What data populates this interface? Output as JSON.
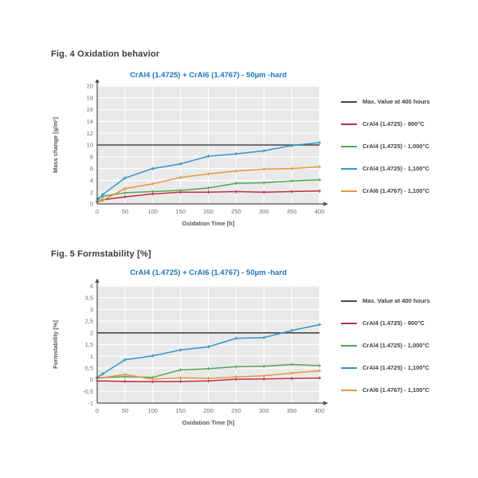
{
  "chart_data": [
    {
      "figure_heading": "Fig. 4 Oxidation behavior",
      "type": "line",
      "title": "CrAl4 (1.4725) + CrAl6 (1.4767) - 50µm -hard",
      "title_color": "#1878ba",
      "xlabel": "Oxidation Time [h]",
      "ylabel": "Mass change [g/m²]",
      "xlim": [
        0,
        400
      ],
      "ylim": [
        0,
        20
      ],
      "grid": true,
      "legend_position": "right",
      "x_ticks": [
        0,
        50,
        100,
        150,
        200,
        250,
        300,
        350,
        400
      ],
      "x_tick_labels": [
        "0",
        "50",
        "100",
        "150",
        "200",
        "250",
        "300",
        "350",
        "400"
      ],
      "y_ticks": [
        0,
        2,
        4,
        6,
        8,
        10,
        12,
        14,
        16,
        18,
        20
      ],
      "y_tick_labels": [
        "0",
        "2",
        "4",
        "6",
        "8",
        "10",
        "12",
        "14",
        "16",
        "18",
        "20"
      ],
      "max_line": {
        "label": "Max. Value at 400 hours",
        "value": 10,
        "color": "#474747"
      },
      "series": [
        {
          "name": "CrAl4 (1.4725) - 900°C",
          "color": "#c22b45",
          "x": [
            0,
            10,
            50,
            100,
            150,
            200,
            250,
            300,
            350,
            400
          ],
          "y": [
            0.3,
            0.7,
            1.2,
            1.7,
            2.0,
            2.0,
            2.1,
            2.0,
            2.1,
            2.2
          ]
        },
        {
          "name": "CrAl4 (1.4725) - 1,000°C",
          "color": "#54a552",
          "x": [
            0,
            10,
            50,
            100,
            150,
            200,
            250,
            300,
            350,
            400
          ],
          "y": [
            0.9,
            1.3,
            1.9,
            2.1,
            2.3,
            2.7,
            3.5,
            3.6,
            3.9,
            4.1
          ]
        },
        {
          "name": "CrAl4 (1.4725) - 1,100°C",
          "color": "#2e96ca",
          "x": [
            0,
            10,
            50,
            100,
            150,
            200,
            250,
            300,
            350,
            400
          ],
          "y": [
            0.5,
            1.6,
            4.4,
            6.0,
            6.8,
            8.1,
            8.5,
            9.0,
            9.9,
            10.4
          ]
        },
        {
          "name": "CrAl6 (1.4767) - 1,100°C",
          "color": "#e5973b",
          "x": [
            0,
            10,
            50,
            100,
            150,
            200,
            250,
            300,
            350,
            400
          ],
          "y": [
            0.3,
            0.6,
            2.6,
            3.4,
            4.5,
            5.1,
            5.6,
            5.9,
            6.0,
            6.3
          ]
        }
      ]
    },
    {
      "figure_heading": "Fig. 5 Formstability [%]",
      "type": "line",
      "title": "CrAl4 (1.4725) + CrAl6 (1.4767) - 50µm -hard",
      "title_color": "#1878ba",
      "xlabel": "Oxidation Time [h]",
      "ylabel": "Formstability [%]",
      "xlim": [
        0,
        400
      ],
      "ylim": [
        -1,
        4
      ],
      "grid": true,
      "legend_position": "right",
      "x_ticks": [
        0,
        50,
        100,
        150,
        200,
        250,
        300,
        350,
        400
      ],
      "x_tick_labels": [
        "0",
        "50",
        "100",
        "150",
        "200",
        "250",
        "300",
        "350",
        "400"
      ],
      "y_ticks": [
        -1,
        -0.5,
        0,
        0.5,
        1,
        1.5,
        2,
        2.5,
        3,
        3.5,
        4
      ],
      "y_tick_labels": [
        "-1",
        "-0,5",
        "0",
        "0,5",
        "1",
        "1,5",
        "2",
        "2,5",
        "3",
        "3,5",
        "4"
      ],
      "max_line": {
        "label": "Max. Value at 400 hours",
        "value": 2,
        "color": "#474747"
      },
      "series": [
        {
          "name": "CrAl4 (1.4725) - 900°C",
          "color": "#c22b45",
          "x": [
            0,
            50,
            100,
            150,
            200,
            250,
            300,
            350,
            400
          ],
          "y": [
            -0.05,
            -0.07,
            -0.08,
            -0.07,
            -0.05,
            0.02,
            0.03,
            0.05,
            0.07
          ]
        },
        {
          "name": "CrAl4 (1.4725) - 1,000°C",
          "color": "#54a552",
          "x": [
            0,
            50,
            100,
            150,
            200,
            250,
            300,
            350,
            400
          ],
          "y": [
            0.08,
            0.13,
            0.1,
            0.42,
            0.47,
            0.55,
            0.57,
            0.65,
            0.6
          ]
        },
        {
          "name": "CrAl4 (1.4725) - 1,100°C",
          "color": "#2e96ca",
          "x": [
            0,
            10,
            50,
            100,
            150,
            200,
            250,
            300,
            350,
            400
          ],
          "y": [
            0.1,
            0.25,
            0.85,
            1.02,
            1.27,
            1.4,
            1.77,
            1.8,
            2.1,
            2.35
          ]
        },
        {
          "name": "CrAl6 (1.4767) - 1,100°C",
          "color": "#e5973b",
          "x": [
            0,
            50,
            100,
            150,
            200,
            250,
            300,
            350,
            400
          ],
          "y": [
            0.05,
            0.22,
            0.02,
            0.08,
            0.05,
            0.12,
            0.17,
            0.28,
            0.38
          ]
        }
      ]
    }
  ]
}
